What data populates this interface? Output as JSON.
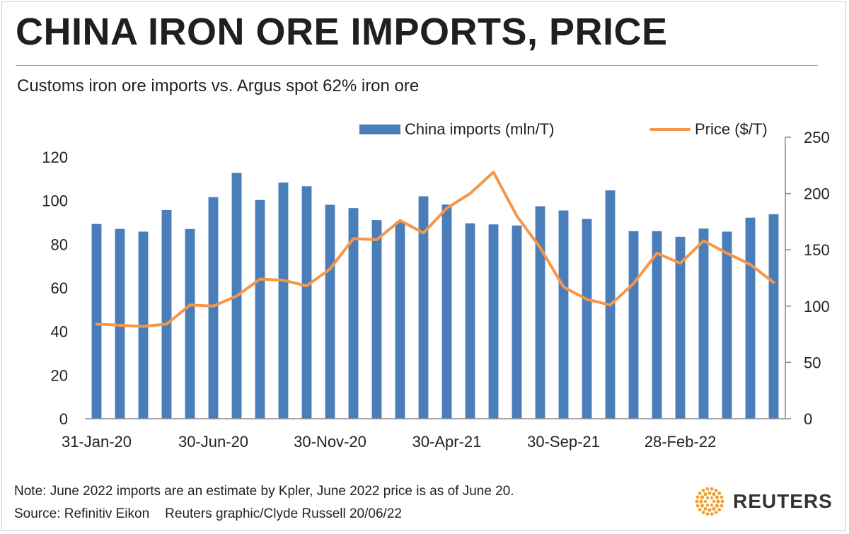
{
  "header": {
    "title": "CHINA IRON ORE IMPORTS, PRICE",
    "subtitle": "Customs iron ore imports vs. Argus spot 62% iron ore"
  },
  "legend": {
    "bar_label": "China imports (mln/T)",
    "line_label": "Price ($/T)"
  },
  "footer": {
    "note": "Note: June 2022 imports are an estimate by Kpler, June 2022 price is as of June 20.",
    "source": "Source: Refinitiv Eikon",
    "credit": "Reuters graphic/Clyde Russell 20/06/22",
    "logo_text": "REUTERS"
  },
  "colors": {
    "bar": "#4a7ebb",
    "line": "#f79646",
    "axis": "#8c8c8c"
  },
  "chart_data": {
    "type": "bar+line",
    "x_tick_labels": [
      "31-Jan-20",
      "30-Jun-20",
      "30-Nov-20",
      "30-Apr-21",
      "30-Sep-21",
      "28-Feb-22"
    ],
    "x_tick_positions": [
      0,
      5,
      10,
      15,
      20,
      25
    ],
    "n_points": 30,
    "ylim_left": [
      0,
      120
    ],
    "yticks_left": [
      0,
      20,
      40,
      60,
      80,
      100,
      120
    ],
    "ylim_right": [
      0,
      250
    ],
    "yticks_right": [
      0,
      50,
      100,
      150,
      200,
      250
    ],
    "series": [
      {
        "name": "China imports (mln/T)",
        "axis": "left",
        "kind": "bar",
        "values": [
          89.3,
          87.0,
          85.8,
          95.7,
          87.0,
          101.6,
          112.7,
          100.3,
          108.3,
          106.6,
          98.1,
          96.6,
          91.1,
          90.2,
          102.0,
          98.2,
          89.6,
          89.1,
          88.6,
          97.4,
          95.5,
          91.6,
          104.7,
          86.0,
          86.0,
          83.4,
          87.2,
          85.8,
          92.2,
          93.8
        ]
      },
      {
        "name": "Price ($/T)",
        "axis": "right",
        "kind": "line",
        "values": [
          84,
          83,
          82,
          84,
          101,
          100,
          109,
          124,
          123,
          118,
          133,
          160,
          159,
          176,
          165,
          187,
          200,
          219,
          180,
          152,
          117,
          106,
          101,
          120,
          147,
          138,
          158,
          147,
          137,
          121
        ]
      }
    ]
  }
}
